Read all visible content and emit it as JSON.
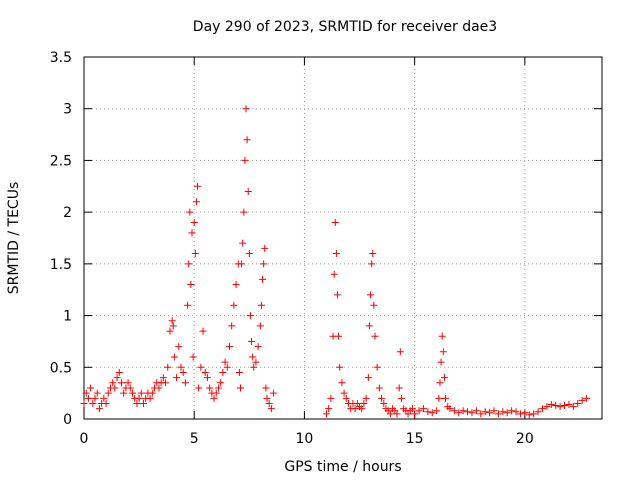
{
  "chart_data": {
    "type": "scatter",
    "title": "Day 290 of 2023, SRMTID for receiver dae3",
    "xlabel": "GPS time / hours",
    "ylabel": "SRMTID / TECUs",
    "xlim": [
      0,
      23.5
    ],
    "ylim": [
      0,
      3.5
    ],
    "xticks": [
      0,
      5,
      10,
      15,
      20
    ],
    "xtick_labels": [
      "0",
      "5",
      "10",
      "15",
      "20"
    ],
    "yticks": [
      0,
      0.5,
      1,
      1.5,
      2,
      2.5,
      3,
      3.5
    ],
    "ytick_labels": [
      "0",
      "0.5",
      "1",
      "1.5",
      "2",
      "2.5",
      "3",
      "3.5"
    ],
    "grid": true,
    "marker": "+",
    "color": "#ff0000",
    "series": [
      {
        "name": "SRMTID",
        "x": [
          0.0,
          0.1,
          0.2,
          0.3,
          0.4,
          0.5,
          0.6,
          0.7,
          0.8,
          0.9,
          1.0,
          1.1,
          1.2,
          1.3,
          1.4,
          1.5,
          1.6,
          1.7,
          1.8,
          1.9,
          2.0,
          2.1,
          2.2,
          2.3,
          2.4,
          2.5,
          2.6,
          2.7,
          2.8,
          2.9,
          3.0,
          3.1,
          3.2,
          3.3,
          3.4,
          3.5,
          3.6,
          3.7,
          3.8,
          3.9,
          4.0,
          4.05,
          4.1,
          4.2,
          4.3,
          4.4,
          4.5,
          4.6,
          4.7,
          4.75,
          4.8,
          4.85,
          4.9,
          4.95,
          5.0,
          5.05,
          5.1,
          5.15,
          5.2,
          5.3,
          5.4,
          5.5,
          5.6,
          5.7,
          5.8,
          5.9,
          6.0,
          6.1,
          6.2,
          6.3,
          6.4,
          6.5,
          6.6,
          6.7,
          6.8,
          6.9,
          7.0,
          7.05,
          7.1,
          7.15,
          7.2,
          7.25,
          7.3,
          7.35,
          7.4,
          7.45,
          7.5,
          7.55,
          7.6,
          7.65,
          7.7,
          7.8,
          7.9,
          8.0,
          8.05,
          8.1,
          8.15,
          8.2,
          8.25,
          8.3,
          8.4,
          8.5,
          8.6,
          11.0,
          11.1,
          11.2,
          11.3,
          11.35,
          11.4,
          11.45,
          11.5,
          11.55,
          11.6,
          11.7,
          11.8,
          11.9,
          12.0,
          12.1,
          12.2,
          12.3,
          12.4,
          12.5,
          12.6,
          12.7,
          12.8,
          12.9,
          12.95,
          13.0,
          13.05,
          13.1,
          13.15,
          13.2,
          13.3,
          13.4,
          13.5,
          13.6,
          13.7,
          13.8,
          13.9,
          14.0,
          14.1,
          14.2,
          14.3,
          14.35,
          14.4,
          14.5,
          14.6,
          14.7,
          14.8,
          14.9,
          15.0,
          15.2,
          15.4,
          15.6,
          15.8,
          16.0,
          16.1,
          16.15,
          16.2,
          16.25,
          16.3,
          16.35,
          16.4,
          16.5,
          16.6,
          16.8,
          17.0,
          17.2,
          17.4,
          17.6,
          17.8,
          18.0,
          18.2,
          18.4,
          18.6,
          18.8,
          19.0,
          19.2,
          19.4,
          19.6,
          19.8,
          20.0,
          20.2,
          20.4,
          20.6,
          20.8,
          21.0,
          21.2,
          21.4,
          21.6,
          21.8,
          22.0,
          22.2,
          22.4,
          22.6,
          22.8
        ],
        "y": [
          0.15,
          0.25,
          0.2,
          0.3,
          0.15,
          0.2,
          0.25,
          0.1,
          0.15,
          0.2,
          0.15,
          0.25,
          0.3,
          0.35,
          0.3,
          0.4,
          0.45,
          0.35,
          0.25,
          0.3,
          0.35,
          0.3,
          0.25,
          0.2,
          0.15,
          0.2,
          0.25,
          0.15,
          0.2,
          0.25,
          0.2,
          0.25,
          0.3,
          0.35,
          0.3,
          0.35,
          0.4,
          0.35,
          0.5,
          0.85,
          0.95,
          0.9,
          0.6,
          0.4,
          0.7,
          0.5,
          0.45,
          0.35,
          1.1,
          1.5,
          2.0,
          1.3,
          1.8,
          0.6,
          1.9,
          1.6,
          2.1,
          2.25,
          0.3,
          0.5,
          0.85,
          0.45,
          0.4,
          0.3,
          0.25,
          0.2,
          0.25,
          0.3,
          0.35,
          0.45,
          0.55,
          0.5,
          0.7,
          0.9,
          1.1,
          1.3,
          1.5,
          0.45,
          0.3,
          1.5,
          1.7,
          2.0,
          2.5,
          3.0,
          2.7,
          2.2,
          1.6,
          1.0,
          0.75,
          0.6,
          0.5,
          0.55,
          0.7,
          0.9,
          1.1,
          1.35,
          1.5,
          1.65,
          0.3,
          0.2,
          0.15,
          0.1,
          0.25,
          0.05,
          0.1,
          0.2,
          0.8,
          1.4,
          1.9,
          1.6,
          1.2,
          0.8,
          0.5,
          0.35,
          0.25,
          0.2,
          0.15,
          0.1,
          0.15,
          0.1,
          0.15,
          0.12,
          0.1,
          0.15,
          0.2,
          0.4,
          0.9,
          1.2,
          1.5,
          1.6,
          1.1,
          0.8,
          0.5,
          0.3,
          0.2,
          0.15,
          0.1,
          0.08,
          0.05,
          0.1,
          0.08,
          0.05,
          0.3,
          0.65,
          0.2,
          0.1,
          0.08,
          0.05,
          0.08,
          0.1,
          0.05,
          0.08,
          0.1,
          0.07,
          0.06,
          0.08,
          0.2,
          0.35,
          0.55,
          0.8,
          0.65,
          0.4,
          0.2,
          0.12,
          0.1,
          0.08,
          0.06,
          0.08,
          0.07,
          0.06,
          0.08,
          0.05,
          0.07,
          0.06,
          0.08,
          0.05,
          0.07,
          0.06,
          0.08,
          0.07,
          0.05,
          0.06,
          0.04,
          0.05,
          0.07,
          0.1,
          0.12,
          0.14,
          0.13,
          0.12,
          0.13,
          0.14,
          0.12,
          0.15,
          0.18,
          0.2
        ]
      }
    ]
  }
}
